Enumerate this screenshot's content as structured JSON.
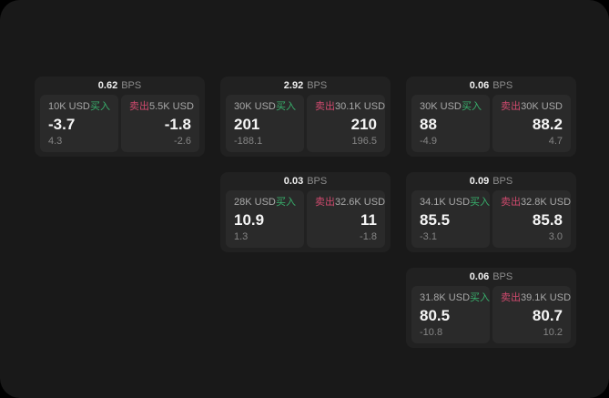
{
  "labels": {
    "buy": "买入",
    "sell": "卖出",
    "bps_unit": "BPS"
  },
  "colors": {
    "buy_green": "#38b06c",
    "sell_red": "#d04a6e",
    "screen_bg": "#191919",
    "card_bg": "#212121",
    "pane_bg": "#2a2a2a"
  },
  "cards": [
    {
      "bps_value": "0.62",
      "buy": {
        "notional": "10K USD",
        "price": "-3.7",
        "delta": "4.3"
      },
      "sell": {
        "notional": "5.5K USD",
        "price": "-1.8",
        "delta": "-2.6"
      }
    },
    {
      "bps_value": "2.92",
      "buy": {
        "notional": "30K USD",
        "price": "201",
        "delta": "-188.1"
      },
      "sell": {
        "notional": "30.1K USD",
        "price": "210",
        "delta": "196.5"
      }
    },
    {
      "bps_value": "0.06",
      "buy": {
        "notional": "30K USD",
        "price": "88",
        "delta": "-4.9"
      },
      "sell": {
        "notional": "30K USD",
        "price": "88.2",
        "delta": "4.7"
      }
    },
    {
      "bps_value": "0.03",
      "buy": {
        "notional": "28K USD",
        "price": "10.9",
        "delta": "1.3"
      },
      "sell": {
        "notional": "32.6K USD",
        "price": "11",
        "delta": "-1.8"
      }
    },
    {
      "bps_value": "0.09",
      "buy": {
        "notional": "34.1K USD",
        "price": "85.5",
        "delta": "-3.1"
      },
      "sell": {
        "notional": "32.8K USD",
        "price": "85.8",
        "delta": "3.0"
      }
    },
    {
      "bps_value": "0.06",
      "buy": {
        "notional": "31.8K USD",
        "price": "80.5",
        "delta": "-10.8"
      },
      "sell": {
        "notional": "39.1K USD",
        "price": "80.7",
        "delta": "10.2"
      }
    }
  ]
}
